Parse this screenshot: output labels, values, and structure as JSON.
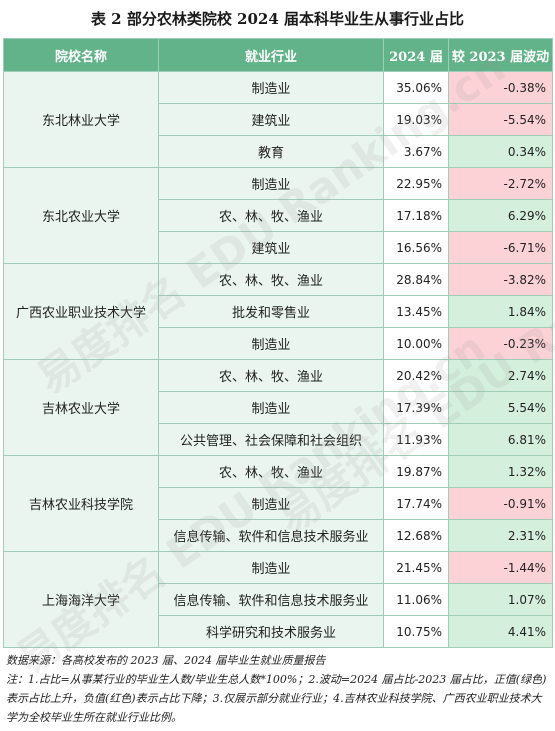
{
  "title": "表 2  部分农林类院校 2024 届本科毕业生从事行业占比",
  "columns": [
    "院校名称",
    "就业行业",
    "2024 届",
    "较 2023 届波动"
  ],
  "colors": {
    "header_bg": "#62b389",
    "group_bg": "#eaf5ef",
    "positive_bg": "#d5efdd",
    "negative_bg": "#fcd2d7",
    "border": "#9fcdb7"
  },
  "groups": [
    {
      "school": "东北林业大学",
      "rows": [
        {
          "industry": "制造业",
          "share": "35.06%",
          "change": "-0.38%",
          "sign": "neg"
        },
        {
          "industry": "建筑业",
          "share": "19.03%",
          "change": "-5.54%",
          "sign": "neg"
        },
        {
          "industry": "教育",
          "share": "3.67%",
          "change": "0.34%",
          "sign": "pos"
        }
      ]
    },
    {
      "school": "东北农业大学",
      "rows": [
        {
          "industry": "制造业",
          "share": "22.95%",
          "change": "-2.72%",
          "sign": "neg"
        },
        {
          "industry": "农、林、牧、渔业",
          "share": "17.18%",
          "change": "6.29%",
          "sign": "pos"
        },
        {
          "industry": "建筑业",
          "share": "16.56%",
          "change": "-6.71%",
          "sign": "neg"
        }
      ]
    },
    {
      "school": "广西农业职业技术大学",
      "rows": [
        {
          "industry": "农、林、牧、渔业",
          "share": "28.84%",
          "change": "-3.82%",
          "sign": "neg"
        },
        {
          "industry": "批发和零售业",
          "share": "13.45%",
          "change": "1.84%",
          "sign": "pos"
        },
        {
          "industry": "制造业",
          "share": "10.00%",
          "change": "-0.23%",
          "sign": "neg"
        }
      ]
    },
    {
      "school": "吉林农业大学",
      "rows": [
        {
          "industry": "农、林、牧、渔业",
          "share": "20.42%",
          "change": "2.74%",
          "sign": "pos"
        },
        {
          "industry": "制造业",
          "share": "17.39%",
          "change": "5.54%",
          "sign": "pos"
        },
        {
          "industry": "公共管理、社会保障和社会组织",
          "share": "11.93%",
          "change": "6.81%",
          "sign": "pos"
        }
      ]
    },
    {
      "school": "吉林农业科技学院",
      "rows": [
        {
          "industry": "农、林、牧、渔业",
          "share": "19.87%",
          "change": "1.32%",
          "sign": "pos"
        },
        {
          "industry": "制造业",
          "share": "17.74%",
          "change": "-0.91%",
          "sign": "neg"
        },
        {
          "industry": "信息传输、软件和信息技术服务业",
          "share": "12.68%",
          "change": "2.31%",
          "sign": "pos"
        }
      ]
    },
    {
      "school": "上海海洋大学",
      "rows": [
        {
          "industry": "制造业",
          "share": "21.45%",
          "change": "-1.44%",
          "sign": "neg"
        },
        {
          "industry": "信息传输、软件和信息技术服务业",
          "share": "11.06%",
          "change": "1.07%",
          "sign": "pos"
        },
        {
          "industry": "科学研究和技术服务业",
          "share": "10.75%",
          "change": "4.41%",
          "sign": "pos"
        }
      ]
    }
  ],
  "notes": {
    "source": "数据来源：各高校发布的 2023 届、2024 届毕业生就业质量报告",
    "note": "注：1.占比=从事某行业的毕业生人数/毕业生总人数*100%；2.波动=2024 届占比-2023 届占比，正值(绿色)表示占比上升，负值(红色)表示占比下降；3.仅展示部分就业行业；4.吉林农业科技学院、广西农业职业技术大学为全校毕业生所在就业行业比例。"
  },
  "watermark_text": "易度排名 EDU Ranking.cn"
}
